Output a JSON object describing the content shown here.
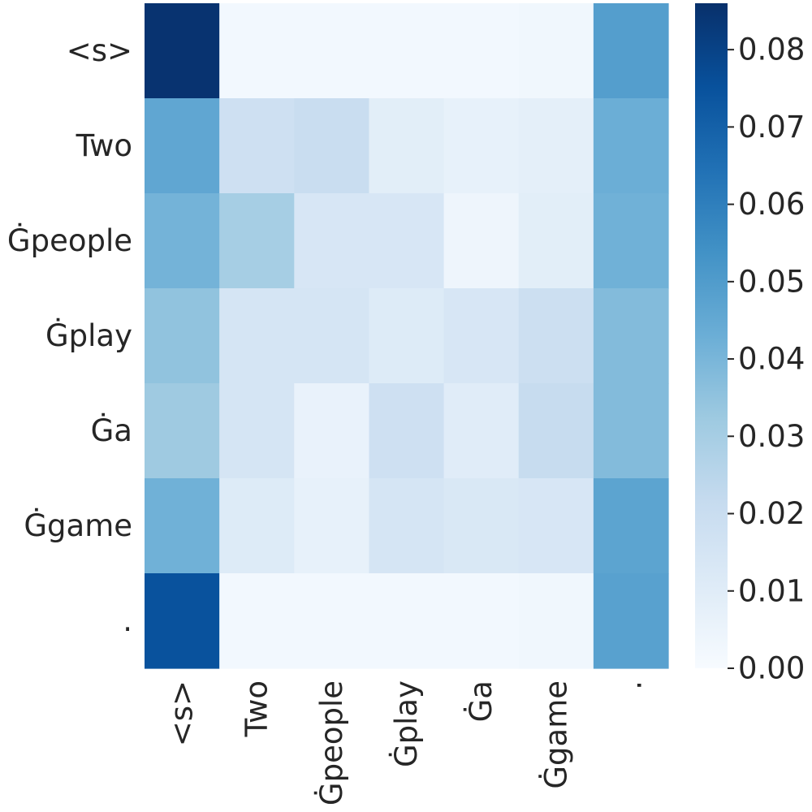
{
  "chart_data": {
    "type": "heatmap",
    "x_labels": [
      "<s>",
      "Two",
      "Ġpeople",
      "Ġplay",
      "Ġa",
      "Ġgame",
      "."
    ],
    "y_labels": [
      "<s>",
      "Two",
      "Ġpeople",
      "Ġplay",
      "Ġa",
      "Ġgame",
      "."
    ],
    "values": [
      [
        0.085,
        0.002,
        0.002,
        0.002,
        0.002,
        0.003,
        0.049
      ],
      [
        0.046,
        0.018,
        0.02,
        0.009,
        0.007,
        0.008,
        0.043
      ],
      [
        0.041,
        0.03,
        0.014,
        0.014,
        0.004,
        0.009,
        0.042
      ],
      [
        0.035,
        0.015,
        0.015,
        0.011,
        0.014,
        0.019,
        0.038
      ],
      [
        0.032,
        0.015,
        0.006,
        0.018,
        0.01,
        0.021,
        0.038
      ],
      [
        0.042,
        0.011,
        0.007,
        0.015,
        0.013,
        0.014,
        0.047
      ],
      [
        0.075,
        0.002,
        0.002,
        0.002,
        0.002,
        0.003,
        0.048
      ]
    ],
    "colorbar": {
      "min": 0.0,
      "max": 0.086,
      "ticks": [
        "0.00",
        "0.01",
        "0.02",
        "0.03",
        "0.04",
        "0.05",
        "0.06",
        "0.07",
        "0.08"
      ],
      "colormap": "Blues"
    },
    "title": "",
    "xlabel": "",
    "ylabel": ""
  }
}
